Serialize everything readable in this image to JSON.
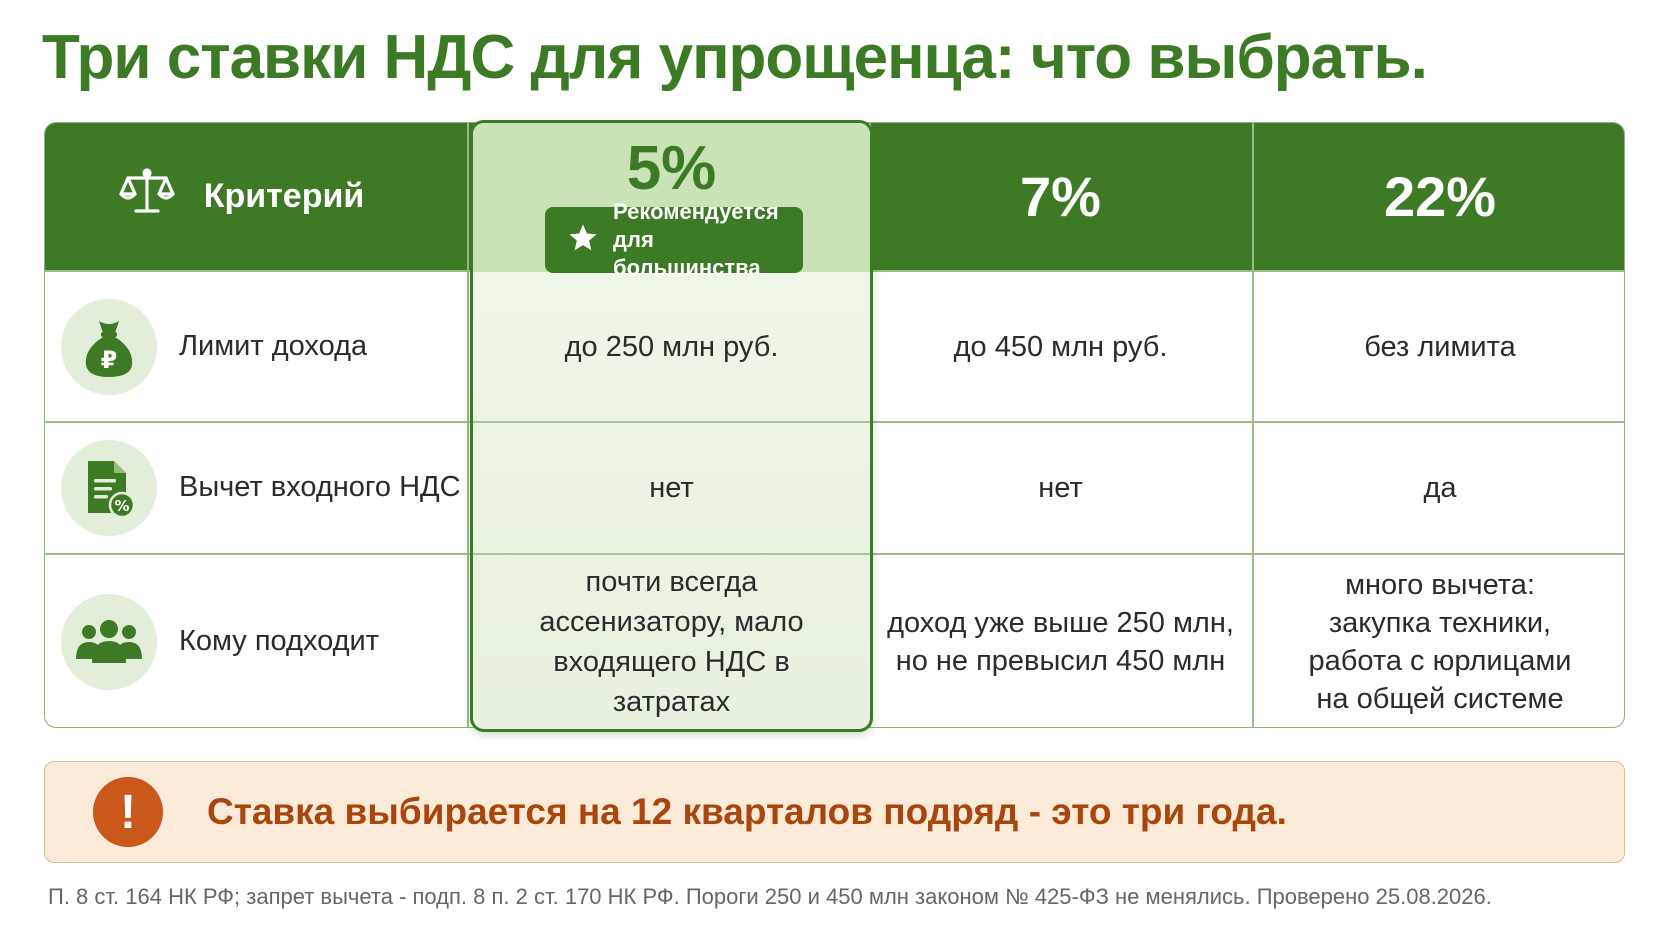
{
  "title": "Три ставки НДС для упрощенца: что выбрать.",
  "header": {
    "criterion_label": "Критерий",
    "criterion_icon": "scales-icon",
    "rates": [
      "5%",
      "7%",
      "22%"
    ],
    "recommended_badge": [
      "Рекомендуется",
      "для большинства"
    ],
    "badge_icon": "star-icon"
  },
  "rows": [
    {
      "icon": "money-bag-ruble-icon",
      "criterion": "Лимит дохода",
      "values": [
        "до 250 млн руб.",
        "до 450 млн руб.",
        "без лимита"
      ]
    },
    {
      "icon": "document-percent-icon",
      "criterion": "Вычет входного НДС",
      "values": [
        "нет",
        "нет",
        "да"
      ]
    },
    {
      "icon": "people-group-icon",
      "criterion": "Кому подходит",
      "values": [
        "почти всегда ассенизатору, мало входящего НДС в затратах",
        "доход уже выше 250 млн, но не превысил 450 млн",
        "много вычета: закупка техники, работа с юрлицами на общей системе"
      ]
    }
  ],
  "warning": {
    "icon": "exclamation-icon",
    "text": "Ставка выбирается на 12 кварталов подряд - это три года."
  },
  "footnote": "П. 8 ст. 164 НК РФ; запрет вычета - подп. 8 п. 2 ст. 170 НК РФ. Пороги 250 и 450 млн законом № 425-ФЗ не менялись. Проверено 25.08.2026.",
  "colors": {
    "primary_green": "#3e7a25",
    "highlight_bg": "#e8f2e0",
    "warning_bg": "#fcebd9",
    "warning_accent": "#c9581a"
  }
}
